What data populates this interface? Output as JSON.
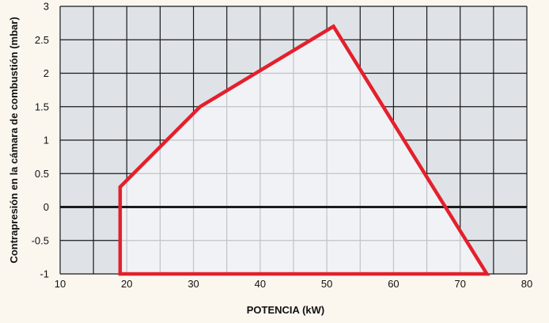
{
  "chart_data": {
    "type": "area",
    "title": "",
    "xlabel": "POTENCIA (kW)",
    "ylabel": "Contrapresión en la cámara de combustión (mbar)",
    "xlim": [
      10,
      80
    ],
    "ylim": [
      -1,
      3
    ],
    "xticks": [
      10,
      20,
      30,
      40,
      50,
      60,
      70,
      80
    ],
    "yticks": [
      -1,
      -0.5,
      0,
      0.5,
      1,
      1.5,
      2,
      2.5,
      3
    ],
    "ytick_labels": [
      "-1",
      "-0.5",
      "0",
      "0.5",
      "1",
      "1.5",
      "2",
      "2.5",
      "3"
    ],
    "grid": true,
    "series": [
      {
        "points": [
          [
            19,
            -1
          ],
          [
            19,
            0.3
          ],
          [
            31,
            1.5
          ],
          [
            51,
            2.7
          ],
          [
            74,
            -1
          ],
          [
            19,
            -1
          ]
        ]
      }
    ],
    "colors": {
      "outline": "#e3202c",
      "fill": "#f1f2f5",
      "plot_background": "#dfe3e7",
      "grid": "#1a1a1a",
      "grid_inside": "#bfc3c8",
      "zero_line": "#1a1a1a"
    }
  }
}
